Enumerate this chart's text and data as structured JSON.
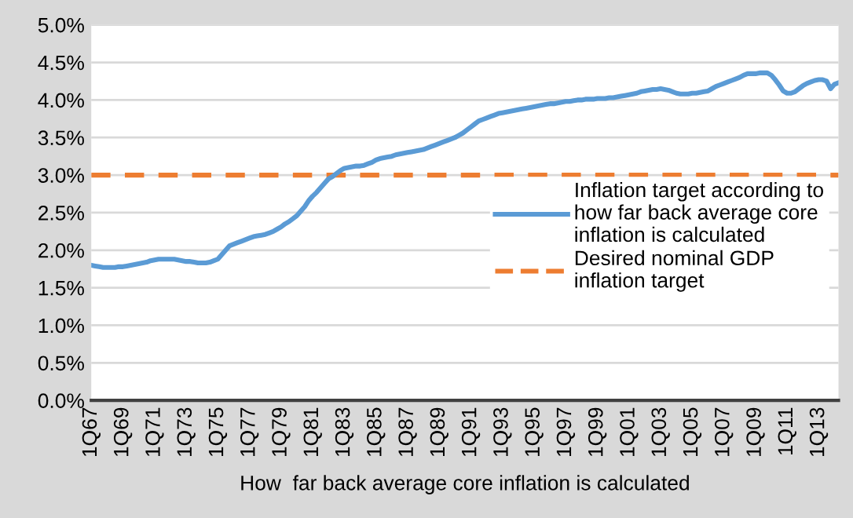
{
  "chart_data": {
    "type": "line",
    "xlabel": "How  far back average core inflation is calculated",
    "categories": [
      "1Q67",
      null,
      null,
      null,
      null,
      null,
      null,
      null,
      "1Q69",
      null,
      null,
      null,
      null,
      null,
      null,
      null,
      "1Q71",
      null,
      null,
      null,
      null,
      null,
      null,
      null,
      "1Q73",
      null,
      null,
      null,
      null,
      null,
      null,
      null,
      "1Q75",
      null,
      null,
      null,
      null,
      null,
      null,
      null,
      "1Q77",
      null,
      null,
      null,
      null,
      null,
      null,
      null,
      "1Q79",
      null,
      null,
      null,
      null,
      null,
      null,
      null,
      "1Q81",
      null,
      null,
      null,
      null,
      null,
      null,
      null,
      "1Q83",
      null,
      null,
      null,
      null,
      null,
      null,
      null,
      "1Q85",
      null,
      null,
      null,
      null,
      null,
      null,
      null,
      "1Q87",
      null,
      null,
      null,
      null,
      null,
      null,
      null,
      "1Q89",
      null,
      null,
      null,
      null,
      null,
      null,
      null,
      "1Q91",
      null,
      null,
      null,
      null,
      null,
      null,
      null,
      "1Q93",
      null,
      null,
      null,
      null,
      null,
      null,
      null,
      "1Q95",
      null,
      null,
      null,
      null,
      null,
      null,
      null,
      "1Q97",
      null,
      null,
      null,
      null,
      null,
      null,
      null,
      "1Q99",
      null,
      null,
      null,
      null,
      null,
      null,
      null,
      "1Q01",
      null,
      null,
      null,
      null,
      null,
      null,
      null,
      "1Q03",
      null,
      null,
      null,
      null,
      null,
      null,
      null,
      "1Q05",
      null,
      null,
      null,
      null,
      null,
      null,
      null,
      "1Q07",
      null,
      null,
      null,
      null,
      null,
      null,
      null,
      "1Q09",
      null,
      null,
      null,
      null,
      null,
      null,
      null,
      "1Q11",
      null,
      null,
      null,
      null,
      null,
      null,
      null,
      "1Q13",
      null,
      null,
      null,
      null,
      null
    ],
    "series": [
      {
        "name": "Inflation target according to\nhow far back average core\ninflation is calculated",
        "color": "#5b9bd5",
        "line_style": "solid",
        "values": [
          1.8,
          1.79,
          1.78,
          1.77,
          1.77,
          1.77,
          1.77,
          1.78,
          1.78,
          1.79,
          1.8,
          1.81,
          1.82,
          1.83,
          1.84,
          1.86,
          1.87,
          1.88,
          1.88,
          1.88,
          1.88,
          1.88,
          1.87,
          1.86,
          1.85,
          1.85,
          1.84,
          1.83,
          1.83,
          1.83,
          1.84,
          1.86,
          1.88,
          1.94,
          2.0,
          2.06,
          2.08,
          2.1,
          2.12,
          2.14,
          2.16,
          2.18,
          2.19,
          2.2,
          2.21,
          2.23,
          2.25,
          2.28,
          2.31,
          2.35,
          2.38,
          2.42,
          2.46,
          2.52,
          2.58,
          2.66,
          2.72,
          2.77,
          2.83,
          2.89,
          2.95,
          2.98,
          3.02,
          3.06,
          3.09,
          3.1,
          3.11,
          3.12,
          3.12,
          3.13,
          3.15,
          3.17,
          3.2,
          3.22,
          3.23,
          3.24,
          3.25,
          3.27,
          3.28,
          3.29,
          3.3,
          3.31,
          3.32,
          3.33,
          3.34,
          3.36,
          3.38,
          3.4,
          3.42,
          3.44,
          3.46,
          3.48,
          3.5,
          3.53,
          3.56,
          3.6,
          3.64,
          3.68,
          3.72,
          3.74,
          3.76,
          3.78,
          3.8,
          3.82,
          3.83,
          3.84,
          3.85,
          3.86,
          3.87,
          3.88,
          3.89,
          3.9,
          3.91,
          3.92,
          3.93,
          3.94,
          3.95,
          3.95,
          3.96,
          3.97,
          3.98,
          3.98,
          3.99,
          4.0,
          4.0,
          4.01,
          4.01,
          4.01,
          4.02,
          4.02,
          4.02,
          4.03,
          4.03,
          4.04,
          4.05,
          4.06,
          4.07,
          4.08,
          4.09,
          4.11,
          4.12,
          4.13,
          4.14,
          4.14,
          4.15,
          4.14,
          4.13,
          4.11,
          4.09,
          4.08,
          4.08,
          4.08,
          4.09,
          4.09,
          4.1,
          4.11,
          4.12,
          4.15,
          4.18,
          4.2,
          4.22,
          4.24,
          4.26,
          4.28,
          4.3,
          4.33,
          4.35,
          4.35,
          4.35,
          4.36,
          4.36,
          4.36,
          4.33,
          4.27,
          4.2,
          4.12,
          4.09,
          4.09,
          4.11,
          4.15,
          4.19,
          4.22,
          4.24,
          4.26,
          4.27,
          4.27,
          4.25,
          4.15,
          4.21,
          4.23
        ]
      }
    ],
    "ref_lines": [
      {
        "axis": "y",
        "value": 3.0,
        "label": "Desired nominal GDP\ninflation target",
        "color": "#ed7d31",
        "line_style": "dashed"
      }
    ],
    "ylim": [
      0,
      5
    ],
    "yticks": [
      {
        "value": 0,
        "label": "0.0%"
      },
      {
        "value": 0.5,
        "label": "0.5%"
      },
      {
        "value": 1,
        "label": "1.0%"
      },
      {
        "value": 1.5,
        "label": "1.5%"
      },
      {
        "value": 2,
        "label": "2.0%"
      },
      {
        "value": 2.5,
        "label": "2.5%"
      },
      {
        "value": 3,
        "label": "3.0%"
      },
      {
        "value": 3.5,
        "label": "3.5%"
      },
      {
        "value": 4,
        "label": "4.0%"
      },
      {
        "value": 4.5,
        "label": "4.5%"
      },
      {
        "value": 5,
        "label": "5.0%"
      }
    ],
    "grid": "y",
    "legend": "right",
    "marker": "none"
  }
}
